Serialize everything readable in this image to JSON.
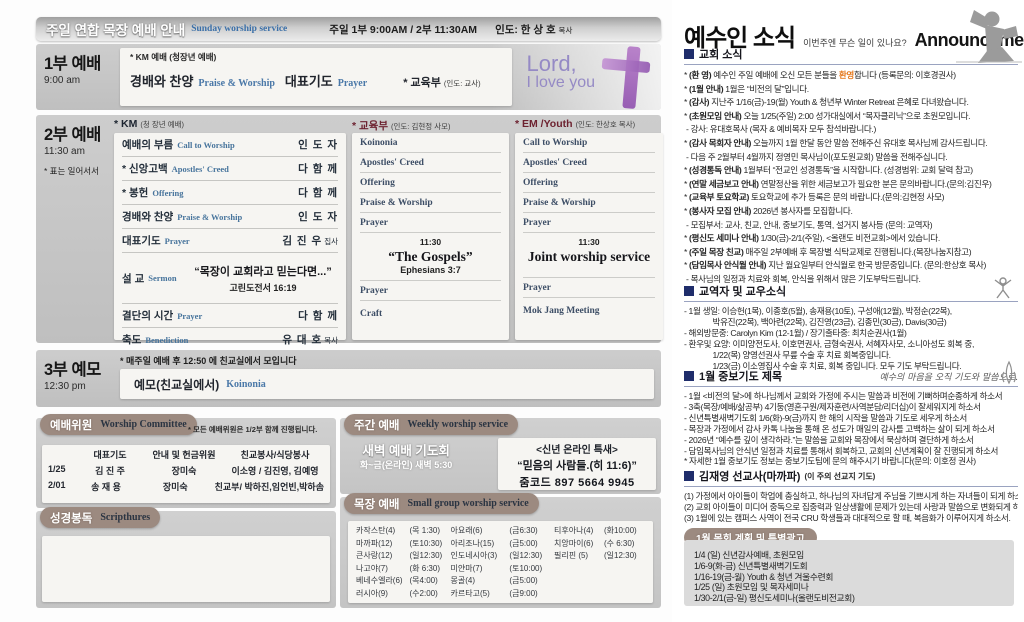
{
  "colors": {
    "accent_orange": "#e5791e",
    "taupe_label": "#9c8a80",
    "purple_cross": "#9a5cb5",
    "lavender_text": "#958ac5",
    "navy_square": "#1f2d6b",
    "steel_blue": "#47749c"
  },
  "left": {
    "header": {
      "title": "주일 연합 목장 예배 안내",
      "subtitle": "Sunday worship service",
      "time_info": "주일 1부 9:00AM / 2부 11:30AM",
      "leader": "인도: 한 상 호",
      "leader_title": "목사"
    },
    "service1": {
      "name": "1부 예배",
      "time": "9:00 am",
      "note": "* KM 예배 (청장년 예배)",
      "item1_ko": "경배와 찬양",
      "item1_en": "Praise & Worship",
      "item2_ko": "대표기도",
      "item2_en": "Prayer",
      "dept": "* 교육부",
      "dept_note": "(인도: 교사)",
      "lord_line1": "Lord,",
      "lord_line2": "I love you"
    },
    "service2": {
      "name": "2부 예배",
      "time": "11:30 am",
      "stand_note": "* 표는 일어서서",
      "km": {
        "header": "* KM",
        "header_note": "(청 장년 예배)",
        "rows": [
          {
            "ko": "예배의 부름",
            "en": "Call to Worship",
            "who": "인 도 자"
          },
          {
            "ko": "* 신앙고백",
            "en": "Apostles' Creed",
            "who": "다 함 께"
          },
          {
            "ko": "* 봉헌",
            "en": "Offering",
            "who": "다 함 께"
          },
          {
            "ko": "경배와 찬양",
            "en": "Praise & Worship",
            "who": "인 도 자"
          },
          {
            "ko": "대표기도",
            "en": "Prayer",
            "who": "김 진 우",
            "who_title": "집사"
          },
          {
            "type": "sermon",
            "ko": "설 교",
            "en": "Sermon",
            "title": "“목장이 교회라고 믿는다면...”",
            "verse": "고린도전서 16:19"
          },
          {
            "ko": "결단의 시간",
            "en": "Prayer",
            "who": "다 함 께"
          },
          {
            "ko": "축도",
            "en": "Benediction",
            "who": "유 대 호",
            "who_title": "목사"
          }
        ]
      },
      "edu": {
        "header": "* 교육부",
        "header_note": "(인도: 김현정 사모)",
        "rows": [
          {
            "t": "Koinonia"
          },
          {
            "t": "Apostles' Creed"
          },
          {
            "t": "Offering"
          },
          {
            "t": "Praise & Worship"
          },
          {
            "t": "Prayer"
          },
          {
            "type": "center",
            "time": "11:30",
            "title": "“The Gospels”",
            "sub": "Ephesians 3:7"
          },
          {
            "t": "Prayer"
          },
          {
            "t": "Craft",
            "tall": true
          }
        ]
      },
      "em": {
        "header": "* EM /Youth",
        "header_note": "(인도: 한상호 목사)",
        "rows": [
          {
            "t": "Call to Worship"
          },
          {
            "t": "Apostles' Creed"
          },
          {
            "t": "Offering"
          },
          {
            "t": "Praise & Worship"
          },
          {
            "t": "Prayer"
          },
          {
            "type": "center",
            "time": "11:30",
            "title": "Joint worship service",
            "sub": ""
          },
          {
            "t": "Prayer"
          },
          {
            "t": "Mok Jang Meeting",
            "tall": true
          }
        ]
      }
    },
    "service3": {
      "name": "3부 예모",
      "time": "12:30 pm",
      "note": "* 매주일 예배 후 12:50 에 친교실에서 모입니다",
      "item_ko": "예모(친교실에서)",
      "item_en": "Koinonia"
    },
    "committee": {
      "label": "예배위원",
      "label_en": "Worship Committee",
      "note": "* 모든 예배위원은 1/2부 함께 진행됩니다.",
      "headers": [
        "",
        "대표기도",
        "안내 및 헌금위원",
        "친교봉사/식당봉사"
      ],
      "rows": [
        [
          "1/25",
          "김 진 주",
          "장미숙",
          "이소영 / 김진영, 김예영"
        ],
        [
          "2/01",
          "송 재 용",
          "장미숙",
          "친교부/ 박하진,임언빈,박하솜"
        ]
      ]
    },
    "scripture": {
      "label": "성경봉독",
      "label_en": "Scripthures"
    },
    "weekly": {
      "label": "주간 예배",
      "label_en": "Weekly worship service",
      "dawn_title": "새벽 예배 기도회",
      "dawn_time": "화~금(온라인) 새벽 5:30",
      "special_title": "<신년 온라인 특새>",
      "special_name": "“믿음의 사람들.(히 11:6)”",
      "zoom_code": "줌코드 897 5664 9945"
    },
    "smallgroup": {
      "label": "목장 예배",
      "label_en": "Small group worship service",
      "rows": [
        [
          "카작스탄(4)",
          "(목 1:30)",
          "아요래(6)",
          "(금6:30)",
          "티후아나(4)",
          "(화10:00)"
        ],
        [
          "마까파(12)",
          "(토10:30)",
          "아리조나(15)",
          "(금5:00)",
          "치앙마이(6)",
          "(수 6:30)"
        ],
        [
          "큰사랑(12)",
          "(일12:30)",
          "인도네시아(3)",
          "(일12:30)",
          "필리핀 (5)",
          "(일12:30)"
        ],
        [
          "나고야(7)",
          "(화 6:30)",
          "미얀마(7)",
          "(토10:00)",
          "",
          ""
        ],
        [
          "베네수엘라(6)",
          "(목4:00)",
          "몽골(4)",
          "(금5:00)",
          "",
          ""
        ],
        [
          "러시아(9)",
          "(수2:00)",
          "카르타고(5)",
          "(금9:00)",
          "",
          ""
        ]
      ]
    }
  },
  "right": {
    "title": "예수인 소식",
    "subtitle": "이번주엔 무슨 일이 있나요?",
    "title_en": "Announcements",
    "sections": [
      {
        "id": "sec-church",
        "cls": "lh-big",
        "heading": "교회 소식",
        "lines": [
          "* **(환 영)** 예수인 주일 예배에 오신 모든 분들을 {{환영}}합니다 (등록문의: 이호경권사)",
          "* **(1월 안내)** 1월은 “비전의 달”입니다.",
          "* **(감사)** 지난주 1/16(금)-19(월) Youth & 청년부 Winter Retreat 은혜로 다녀왔습니다.",
          "* **(초원모임 안내)** 오늘 1/25(주일) 2:00 성가대실에서 “목자클리닉”으로 초원모입니다.",
          " - 강사: 유대호목사 (목자 & 예비목자 모두 참석바랍니다.)",
          "* **(감사 목회자 안내)** 오늘까지 1월 한달 동안 말씀 전해주신 유대호 목사님께 감사드립니다.",
          " - 다음 주 2월부터 4월까지 정영민 목사님이(포도원교회) 말씀을 전해주십니다.",
          "* **(성경통독 안내)** 1월부터 “전교인 성경통독”을 시작합니다. (성경범위: 교회 달력 참고)",
          "* **(연말 세금보고 안내)** 연말정산을 위한 세금보고가 필요한 분은 문의바랍니다.(문의:김진우)",
          "* **(교육부 토요학교)** 토요학교에 추가 등록은 문의 바랍니다.(문의:김현정 사모)",
          "* **(봉사자 모집 안내)** 2026년 봉사자를 모집합니다.",
          " - 모집부서: 교사, 친교, 안내, 중보기도, 통역, 설거지 봉사등 (문의: 교역자)",
          "* **(평신도 세미나 안내)** 1/30(금)-2/1(주일), <올랜도 비전교회>에서 있습니다.",
          "* **(주일 목장 친교)** 매주일 2부예배 후 목장별 식탁교제로 진행됩니다.(목장나눔지참고)",
          "* **(담임목사 안식월 안내)** 지난 월요일부터 안식월로 한국 방문중입니다. (문의:한상호 목사)",
          " - 목사님의 일정과 치료와 회복, 안식을 위해서 많은 기도부탁드립니다."
        ]
      },
      {
        "id": "sec-people",
        "cls": "lh-sm",
        "heading": "교역자 및 교우소식",
        "doodle": "jump",
        "lines": [
          "- 1월 생일: 이승헌(1목), 이종호(5월), 송재용(10토), 구성애(12월), 박정순(22목),",
          "              박유진(22목), 백아련(22목), 김진영(23금), 김종민(30금), Davis(30금)",
          "- 해외방문중: Carolyn Kim (12-1월) / 장기출타중: 최치순권사(1월)",
          "- 환우및 요양: 이미양전도사, 이호면권사, 금형숙권사, 서혜자사모, 소니아성도 회복 중,",
          "              1/22(목) 양영선권사 무릎 수술 후 치료 회복중입니다.",
          "              1/23(금) 이소영집사 수술 후 치료, 회복 중입니다. 모두 기도 부탁드립니다."
        ]
      },
      {
        "id": "sec-prayer",
        "cls": "lh-sm",
        "heading": "1월 중보기도 제목",
        "cursive": "예수의 마음을 오직 기도와 말씀으로.",
        "doodle": "pray",
        "lines": [
          "- 1월 <비전의 달>에 하나님께서 교회와 가정에 주시는 말씀과 비전에 기뻐하며순종하게 하소서",
          "- 3축(목장/예배/삶공부) 4기둥(영혼구원/제자훈련/사역분담/리더십)이 잘세워지게 하소서",
          "- 신년특별새벽기도회 1/6(화)-9(금)까지 한 해의 시작을 말씀과 기도로 세우게 하소서",
          "- 목장과 가정에서 감사 카톡 나눔을 통해 온 성도가 매일의 감사를 고백하는 삶이 되게 하소서",
          "- 2026년 “예수를 깊이 생각하라.”는 말씀을 교회와 목장에서 묵상하며 결단하게 하소서",
          "- 담임목사님의 안식년 일정과 치료를 통해서 회복하고, 교회의 신년계획이 잘 진행되게 하소서",
          "* 자세한 1월 중보기도 정보는 중보기도팀에 문의 해주시기 바랍니다(문의: 이호정 권사)"
        ]
      },
      {
        "id": "sec-mission",
        "cls": "lh-sm",
        "heading": "김재영 선교사(마까파)",
        "suffix": "(이 주의 선교지 기도)",
        "lines": [
          "(1) 가정에서 아이들이 학업에 충실하고, 하나님의 자녀답게 주님을 기쁘시게 하는 자녀들이 되게 하소서.",
          "(2) 교회 아이들이 미디어 중독으로 집중력과 일상생활에 문제가 있는데 사랑과 말씀으로 변화되게 하소서.",
          "(3) 1월에 있는 캠퍼스 사역이 전국 CRU 학생들과 대대적으로 할 때, 복음화가 이루어지게 하소서."
        ]
      }
    ],
    "plan": {
      "label": "1월 목회 계획 및 특별광고",
      "lines": [
        "1/4 (일) 신년감사예배, 초원모임",
        "1/6-9(화-금) 신년특별새벽기도회",
        "1/16-19(금-월) Youth & 청년 겨울수련회",
        "1/25 (일) 초원모임 및 목자세미나",
        "1/30-2/1(금-일) 평신도세미나(올랜도비전교회)"
      ]
    }
  }
}
